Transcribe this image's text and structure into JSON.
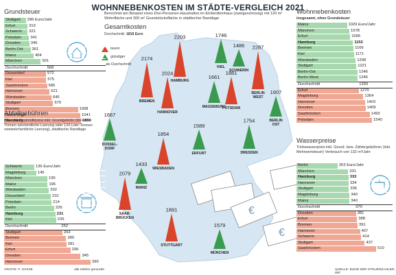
{
  "header": {
    "title": "WOHNNEBENKOSTEN IM STÄDTE-VERGLEICH 2021",
    "subtitle": "Berechnet am Beispiel eines Drei-Personen-Haushaltes im Einfamilienhaus (zweigeschossig) mit 120 m² Wohnfläche und 300 m² Grundstücksfläche in städtischer Randlage"
  },
  "durchschnitt": {
    "label": "Durchschnitt:",
    "value": "1818 Euro"
  },
  "legend": {
    "teurer": "teurer",
    "guenstiger": "günstiger",
    "als": "als Durchschnitt"
  },
  "gesamtkosten_label": "Gesamtkosten",
  "colors": {
    "green": "#3a9a4e",
    "red": "#d9442a",
    "bar_green": "#a8d9ae",
    "bar_red": "#f0a894",
    "map": "#d6e6f2"
  },
  "grundsteuer": {
    "title": "Grundsteuer",
    "unit": "Euro/Jahr",
    "rows": [
      {
        "name": "Stuttgart",
        "value": 296,
        "color": "green"
      },
      {
        "name": "Erfurt",
        "value": 319,
        "color": "green"
      },
      {
        "name": "Schwerin",
        "value": 321,
        "color": "green"
      },
      {
        "name": "Potsdam",
        "value": 341,
        "color": "green"
      },
      {
        "name": "Dresden",
        "value": 345,
        "color": "green"
      },
      {
        "name": "Berlin Ost",
        "value": 361,
        "color": "green"
      },
      {
        "name": "Mainz",
        "value": 404,
        "color": "green"
      },
      {
        "name": "München",
        "value": 501,
        "color": "green"
      },
      {
        "name": "Durchschnitt",
        "value": 568,
        "color": "avg"
      },
      {
        "name": "Düsseldorf",
        "value": 572,
        "color": "red"
      },
      {
        "name": "Kiel",
        "value": 575,
        "color": "red"
      },
      {
        "name": "Saarbrücken",
        "value": 586,
        "color": "red"
      },
      {
        "name": "Hannover",
        "value": 621,
        "color": "red"
      },
      {
        "name": "Wiesbaden",
        "value": 646,
        "color": "red"
      },
      {
        "name": "Stuttgart",
        "value": 670,
        "color": "red"
      },
      {
        "name": "Bremen",
        "value": 1008,
        "color": "red"
      },
      {
        "name": "Berlin West",
        "value": 1041,
        "color": "red"
      },
      {
        "name": "Hamburg",
        "value": 1050,
        "color": "red",
        "highlight": true
      }
    ]
  },
  "abfall": {
    "title": "Abfallgebühren",
    "sub": "Bio- und Restmülltonne inkl. Grundgebühr (60-Liter-Tonnen wöchentliche Leerung oder 120-Liter-Tonnen zweiwöchentliche Leerung), städtische Randlage",
    "unit": "Euro/Jahr",
    "rows": [
      {
        "name": "Schwerin",
        "value": 136,
        "color": "green"
      },
      {
        "name": "Magdeburg",
        "value": 145,
        "color": "green"
      },
      {
        "name": "München",
        "value": 195,
        "color": "green"
      },
      {
        "name": "Mainz",
        "value": 196,
        "color": "green"
      },
      {
        "name": "Wiesbaden",
        "value": 202,
        "color": "green"
      },
      {
        "name": "Düsseldorf",
        "value": 210,
        "color": "green"
      },
      {
        "name": "Potsdam",
        "value": 214,
        "color": "green"
      },
      {
        "name": "Berlin",
        "value": 226,
        "color": "green"
      },
      {
        "name": "Hamburg",
        "value": 231,
        "color": "green",
        "highlight": true
      },
      {
        "name": "Kiel",
        "value": 235,
        "color": "green"
      },
      {
        "name": "Durchschnitt",
        "value": 252,
        "color": "avg"
      },
      {
        "name": "Stuttgart",
        "value": 263,
        "color": "red"
      },
      {
        "name": "Bremen",
        "value": 280,
        "color": "red"
      },
      {
        "name": "Kiel",
        "value": 281,
        "color": "red"
      },
      {
        "name": "Erfurt",
        "value": 299,
        "color": "red"
      },
      {
        "name": "Dresden",
        "value": 345,
        "color": "red"
      },
      {
        "name": "Hannover",
        "value": 390,
        "color": "red"
      }
    ]
  },
  "wohnnebenkosten": {
    "title": "Wohnnebenkosten",
    "sub": "insgesamt, ohne Grundsteuer",
    "unit": "Euro/Jahr",
    "rows": [
      {
        "name": "Mainz",
        "value": 1029,
        "color": "green"
      },
      {
        "name": "München",
        "value": 1078,
        "color": "green"
      },
      {
        "name": "Erfurt",
        "value": 1095,
        "color": "green"
      },
      {
        "name": "Hamburg",
        "value": 1152,
        "color": "green",
        "highlight": true
      },
      {
        "name": "Bremen",
        "value": 1166,
        "color": "green"
      },
      {
        "name": "Kiel",
        "value": 1171,
        "color": "green"
      },
      {
        "name": "Wiesbaden",
        "value": 1208,
        "color": "green"
      },
      {
        "name": "Stuttgart",
        "value": 1221,
        "color": "green"
      },
      {
        "name": "Berlin-Ost",
        "value": 1246,
        "color": "green"
      },
      {
        "name": "Berlin-West",
        "value": 1246,
        "color": "green"
      },
      {
        "name": "Durchschnitt",
        "value": 1250,
        "color": "avg"
      },
      {
        "name": "Erfurt",
        "value": 1270,
        "color": "red"
      },
      {
        "name": "Magdeburg",
        "value": 1364,
        "color": "red"
      },
      {
        "name": "Hannover",
        "value": 1403,
        "color": "red"
      },
      {
        "name": "Dresden",
        "value": 1409,
        "color": "red"
      },
      {
        "name": "Saarbrücken",
        "value": 1493,
        "color": "red"
      },
      {
        "name": "Potsdam",
        "value": 1540,
        "color": "red"
      }
    ]
  },
  "wasser": {
    "title": "Wasserpreise",
    "sub": "Trinkwasserpreis inkl. Grund- bzw. Zählergebühren (inkl. Mehrwertsteuer) Verbrauch von 132 m³/Jahr",
    "unit": "Euro/Jahr",
    "rows": [
      {
        "name": "Berlin",
        "value": 263,
        "color": "green"
      },
      {
        "name": "München",
        "value": 331,
        "color": "green"
      },
      {
        "name": "Hamburg",
        "value": 333,
        "color": "green",
        "highlight": true
      },
      {
        "name": "Hannover",
        "value": 334,
        "color": "green"
      },
      {
        "name": "Stuttgart",
        "value": 336,
        "color": "green"
      },
      {
        "name": "Magdeburg",
        "value": 340,
        "color": "green"
      },
      {
        "name": "Mainz",
        "value": 340,
        "color": "green"
      },
      {
        "name": "Durchschnitt",
        "value": 370,
        "color": "avg"
      },
      {
        "name": "Dresden",
        "value": 381,
        "color": "red"
      },
      {
        "name": "Erfurt",
        "value": 388,
        "color": "red"
      },
      {
        "name": "Bremen",
        "value": 391,
        "color": "red"
      },
      {
        "name": "Hannover",
        "value": 407,
        "color": "red"
      },
      {
        "name": "Schwerin",
        "value": 414,
        "color": "red"
      },
      {
        "name": "Stuttgart",
        "value": 437,
        "color": "red"
      },
      {
        "name": "Saarbrücken",
        "value": 510,
        "color": "red"
      }
    ]
  },
  "cities": [
    {
      "name": "HAMBURG",
      "value": "2203",
      "color": "red"
    },
    {
      "name": "KIEL",
      "value": "1746",
      "color": "green"
    },
    {
      "name": "SCHWERIN",
      "value": "1486",
      "color": "green"
    },
    {
      "name": "BREMEN",
      "value": "2174",
      "color": "red"
    },
    {
      "name": "BERLIN WEST",
      "value": "2287",
      "color": "red"
    },
    {
      "name": "HANNOVER",
      "value": "2024",
      "color": "red"
    },
    {
      "name": "MAGDEBURG",
      "value": "1661",
      "color": "green"
    },
    {
      "name": "POTSDAM",
      "value": "1881",
      "color": "red"
    },
    {
      "name": "BERLIN OST",
      "value": "1607",
      "color": "green"
    },
    {
      "name": "DÜSSEL-DORF",
      "value": "1667",
      "color": "green"
    },
    {
      "name": "ERFURT",
      "value": "1589",
      "color": "green"
    },
    {
      "name": "DRESDEN",
      "value": "1754",
      "color": "green"
    },
    {
      "name": "WIESBADEN",
      "value": "1854",
      "color": "red"
    },
    {
      "name": "MAINZ",
      "value": "1433",
      "color": "green"
    },
    {
      "name": "SAAR-BRÜCKEN",
      "value": "2079",
      "color": "red"
    },
    {
      "name": "STUTTGART",
      "value": "1891",
      "color": "red"
    },
    {
      "name": "MÜNCHEN",
      "value": "1579",
      "color": "green"
    }
  ],
  "footer": {
    "left": "GRAFIK: F. HASSE",
    "mid": "alle Zahlen gerundet",
    "right": "QUELLE: BUND DER STEUERZAHLER, IMF"
  },
  "chart_data": [
    {
      "type": "bar",
      "title": "Grundsteuer",
      "categories": [
        "Stuttgart",
        "Erfurt",
        "Schwerin",
        "Potsdam",
        "Dresden",
        "Berlin Ost",
        "Mainz",
        "München",
        "Durchschnitt",
        "Düsseldorf",
        "Kiel",
        "Saarbrücken",
        "Hannover",
        "Wiesbaden",
        "Stuttgart",
        "Bremen",
        "Berlin West",
        "Hamburg"
      ],
      "values": [
        296,
        319,
        321,
        341,
        345,
        361,
        404,
        501,
        568,
        572,
        575,
        586,
        621,
        646,
        670,
        1008,
        1041,
        1050
      ]
    },
    {
      "type": "bar",
      "title": "Abfallgebühren",
      "categories": [
        "Schwerin",
        "Magdeburg",
        "München",
        "Mainz",
        "Wiesbaden",
        "Düsseldorf",
        "Potsdam",
        "Berlin",
        "Hamburg",
        "Kiel",
        "Durchschnitt",
        "Stuttgart",
        "Bremen",
        "Kiel",
        "Erfurt",
        "Dresden",
        "Hannover"
      ],
      "values": [
        136,
        145,
        195,
        196,
        202,
        210,
        214,
        226,
        231,
        235,
        252,
        263,
        280,
        281,
        299,
        345,
        390
      ]
    },
    {
      "type": "bar",
      "title": "Wohnnebenkosten",
      "categories": [
        "Mainz",
        "München",
        "Erfurt",
        "Hamburg",
        "Bremen",
        "Kiel",
        "Wiesbaden",
        "Stuttgart",
        "Berlin-Ost",
        "Berlin-West",
        "Durchschnitt",
        "Erfurt",
        "Magdeburg",
        "Hannover",
        "Dresden",
        "Saarbrücken",
        "Potsdam"
      ],
      "values": [
        1029,
        1078,
        1095,
        1152,
        1166,
        1171,
        1208,
        1221,
        1246,
        1246,
        1250,
        1270,
        1364,
        1403,
        1409,
        1493,
        1540
      ]
    },
    {
      "type": "bar",
      "title": "Wasserpreise",
      "categories": [
        "Berlin",
        "München",
        "Hamburg",
        "Hannover",
        "Stuttgart",
        "Magdeburg",
        "Mainz",
        "Durchschnitt",
        "Dresden",
        "Erfurt",
        "Bremen",
        "Hannover",
        "Schwerin",
        "Stuttgart",
        "Saarbrücken"
      ],
      "values": [
        263,
        331,
        333,
        334,
        336,
        340,
        340,
        370,
        381,
        388,
        391,
        407,
        414,
        437,
        510
      ]
    },
    {
      "type": "bar",
      "title": "Gesamtkosten",
      "categories": [
        "Hamburg",
        "Kiel",
        "Schwerin",
        "Bremen",
        "Berlin West",
        "Hannover",
        "Magdeburg",
        "Potsdam",
        "Berlin Ost",
        "Düsseldorf",
        "Erfurt",
        "Dresden",
        "Wiesbaden",
        "Mainz",
        "Saarbrücken",
        "Stuttgart",
        "München"
      ],
      "values": [
        2203,
        1746,
        1486,
        2174,
        2287,
        2024,
        1661,
        1881,
        1607,
        1667,
        1589,
        1754,
        1854,
        1433,
        2079,
        1891,
        1579
      ]
    }
  ]
}
